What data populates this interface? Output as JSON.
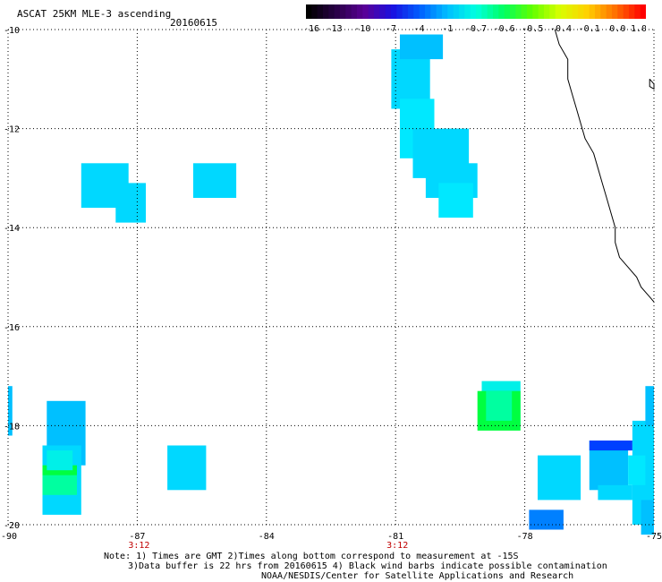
{
  "header": {
    "title": "ASCAT 25KM MLE-3 ascending",
    "date": "20160615"
  },
  "colorbar": {
    "labels": [
      "-16",
      "-13",
      "-10",
      "-7",
      "-4",
      "-1",
      "-0.7",
      "-0.6",
      "-0.5",
      "-0.4",
      "-0.1",
      "0.0",
      "1.0"
    ],
    "colors": [
      "#000000",
      "#2a0048",
      "#5a0096",
      "#1a10e0",
      "#0060ff",
      "#00c0ff",
      "#00ffe0",
      "#00ff60",
      "#60ff00",
      "#d8ff00",
      "#ffd000",
      "#ff7000",
      "#ff0000"
    ]
  },
  "axes": {
    "lon_labels": [
      "-90",
      "-87",
      "-84",
      "-81",
      "-78",
      "-75"
    ],
    "lat_labels": [
      "-10",
      "-12",
      "-14",
      "-16",
      "-18",
      "-20"
    ],
    "time_labels": [
      "3:12",
      "3:12"
    ],
    "time_color": "#c00000"
  },
  "footer": {
    "line1": "Note: 1) Times are GMT 2)Times along bottom correspond to measurement at -15S",
    "line2": "3)Data buffer is 22 hrs from 20160615 4) Black wind barbs indicate possible contamination",
    "line3": "NOAA/NESDIS/Center for Satellite Applications and Research"
  },
  "colors": {
    "cyan": "#00d8ff",
    "light_cyan": "#00e8ff",
    "aqua": "#00f0e8",
    "sky": "#00c0ff",
    "blue": "#0080ff",
    "deep_blue": "#0040ff",
    "green": "#00ff40",
    "sea_green": "#00ffa0"
  },
  "swaths": [
    {
      "lon1": -85.7,
      "lat1": -12.7,
      "lon2": -84.7,
      "lat2": -13.4,
      "color": "cyan"
    },
    {
      "lon1": -88.3,
      "lat1": -12.7,
      "lon2": -87.2,
      "lat2": -13.6,
      "color": "cyan"
    },
    {
      "lon1": -87.5,
      "lat1": -13.1,
      "lon2": -86.8,
      "lat2": -13.9,
      "color": "cyan"
    },
    {
      "lon1": -81.1,
      "lat1": -10.4,
      "lon2": -80.2,
      "lat2": -11.6,
      "color": "cyan"
    },
    {
      "lon1": -80.9,
      "lat1": -10.1,
      "lon2": -79.9,
      "lat2": -10.6,
      "color": "sky"
    },
    {
      "lon1": -80.9,
      "lat1": -11.4,
      "lon2": -80.1,
      "lat2": -12.6,
      "color": "light_cyan"
    },
    {
      "lon1": -80.6,
      "lat1": -12.0,
      "lon2": -79.3,
      "lat2": -13.0,
      "color": "cyan"
    },
    {
      "lon1": -80.3,
      "lat1": -12.7,
      "lon2": -79.1,
      "lat2": -13.4,
      "color": "cyan"
    },
    {
      "lon1": -80.0,
      "lat1": -13.1,
      "lon2": -79.2,
      "lat2": -13.8,
      "color": "light_cyan"
    },
    {
      "lon1": -90.0,
      "lat1": -17.2,
      "lon2": -89.9,
      "lat2": -18.2,
      "color": "sky"
    },
    {
      "lon1": -89.1,
      "lat1": -17.5,
      "lon2": -88.2,
      "lat2": -18.8,
      "color": "sky"
    },
    {
      "lon1": -89.2,
      "lat1": -18.4,
      "lon2": -88.3,
      "lat2": -19.8,
      "color": "cyan"
    },
    {
      "lon1": -89.2,
      "lat1": -18.8,
      "lon2": -88.4,
      "lat2": -19.2,
      "color": "green"
    },
    {
      "lon1": -89.2,
      "lat1": -19.0,
      "lon2": -88.4,
      "lat2": -19.4,
      "color": "sea_green"
    },
    {
      "lon1": -89.1,
      "lat1": -18.5,
      "lon2": -88.5,
      "lat2": -18.9,
      "color": "aqua"
    },
    {
      "lon1": -86.3,
      "lat1": -18.4,
      "lon2": -85.4,
      "lat2": -19.3,
      "color": "cyan"
    },
    {
      "lon1": -79.0,
      "lat1": -17.1,
      "lon2": -78.1,
      "lat2": -18.0,
      "color": "aqua"
    },
    {
      "lon1": -79.1,
      "lat1": -17.3,
      "lon2": -78.1,
      "lat2": -18.1,
      "color": "green"
    },
    {
      "lon1": -78.9,
      "lat1": -17.3,
      "lon2": -78.3,
      "lat2": -17.9,
      "color": "sea_green"
    },
    {
      "lon1": -77.7,
      "lat1": -18.6,
      "lon2": -76.7,
      "lat2": -19.5,
      "color": "cyan"
    },
    {
      "lon1": -77.9,
      "lat1": -19.7,
      "lon2": -77.1,
      "lat2": -20.1,
      "color": "blue"
    },
    {
      "lon1": -76.5,
      "lat1": -18.3,
      "lon2": -75.6,
      "lat2": -19.3,
      "color": "sky"
    },
    {
      "lon1": -76.5,
      "lat1": -18.3,
      "lon2": -75.5,
      "lat2": -18.5,
      "color": "deep_blue"
    },
    {
      "lon1": -76.3,
      "lat1": -19.2,
      "lon2": -75.5,
      "lat2": -19.5,
      "color": "cyan"
    },
    {
      "lon1": -75.5,
      "lat1": -17.9,
      "lon2": -75.0,
      "lat2": -20.0,
      "color": "cyan"
    },
    {
      "lon1": -75.2,
      "lat1": -17.2,
      "lon2": -75.0,
      "lat2": -18.0,
      "color": "sky"
    },
    {
      "lon1": -75.6,
      "lat1": -18.6,
      "lon2": -75.2,
      "lat2": -19.2,
      "color": "light_cyan"
    },
    {
      "lon1": -75.3,
      "lat1": -19.5,
      "lon2": -75.0,
      "lat2": -20.2,
      "color": "sky"
    }
  ],
  "coast_lonlat": [
    [
      -77.3,
      -10.0
    ],
    [
      -77.2,
      -10.3
    ],
    [
      -77.0,
      -10.6
    ],
    [
      -77.0,
      -11.0
    ],
    [
      -76.9,
      -11.3
    ],
    [
      -76.8,
      -11.6
    ],
    [
      -76.7,
      -11.9
    ],
    [
      -76.6,
      -12.2
    ],
    [
      -76.4,
      -12.5
    ],
    [
      -76.3,
      -12.8
    ],
    [
      -76.2,
      -13.1
    ],
    [
      -76.1,
      -13.4
    ],
    [
      -76.0,
      -13.7
    ],
    [
      -75.9,
      -14.0
    ],
    [
      -75.9,
      -14.3
    ],
    [
      -75.8,
      -14.6
    ],
    [
      -75.6,
      -14.8
    ],
    [
      -75.4,
      -15.0
    ],
    [
      -75.3,
      -15.2
    ],
    [
      -75.1,
      -15.4
    ],
    [
      -75.0,
      -15.5
    ]
  ],
  "island_lonlat": [
    [
      -75.1,
      -11.0
    ],
    [
      -75.0,
      -11.1
    ],
    [
      -75.0,
      -11.2
    ],
    [
      -75.1,
      -11.15
    ],
    [
      -75.1,
      -11.0
    ]
  ]
}
